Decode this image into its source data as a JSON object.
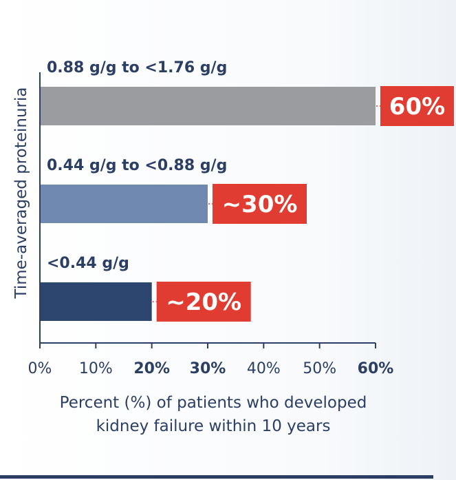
{
  "chart_data": {
    "type": "bar",
    "orientation": "horizontal",
    "categories": [
      "0.88 g/g to <1.76 g/g",
      "0.44 g/g to <0.88 g/g",
      "<0.44 g/g"
    ],
    "values": [
      60,
      30,
      20
    ],
    "value_labels": [
      "60%",
      "~30%",
      "~20%"
    ],
    "bar_colors": [
      "#9a9ca0",
      "#7089b0",
      "#2c4670"
    ],
    "label_box_color": "#e03c32",
    "ylabel": "Time-averaged proteinuria",
    "xlabel_lines": [
      "Percent (%) of patients who developed",
      "kidney failure within 10 years"
    ],
    "xlim": [
      0,
      60
    ],
    "xticks": [
      0,
      10,
      20,
      30,
      40,
      50,
      60
    ],
    "xtick_labels": [
      "0%",
      "10%",
      "20%",
      "30%",
      "40%",
      "50%",
      "60%"
    ],
    "bold_ticks": [
      20,
      30,
      60
    ],
    "text_color": "#2c3e63"
  }
}
